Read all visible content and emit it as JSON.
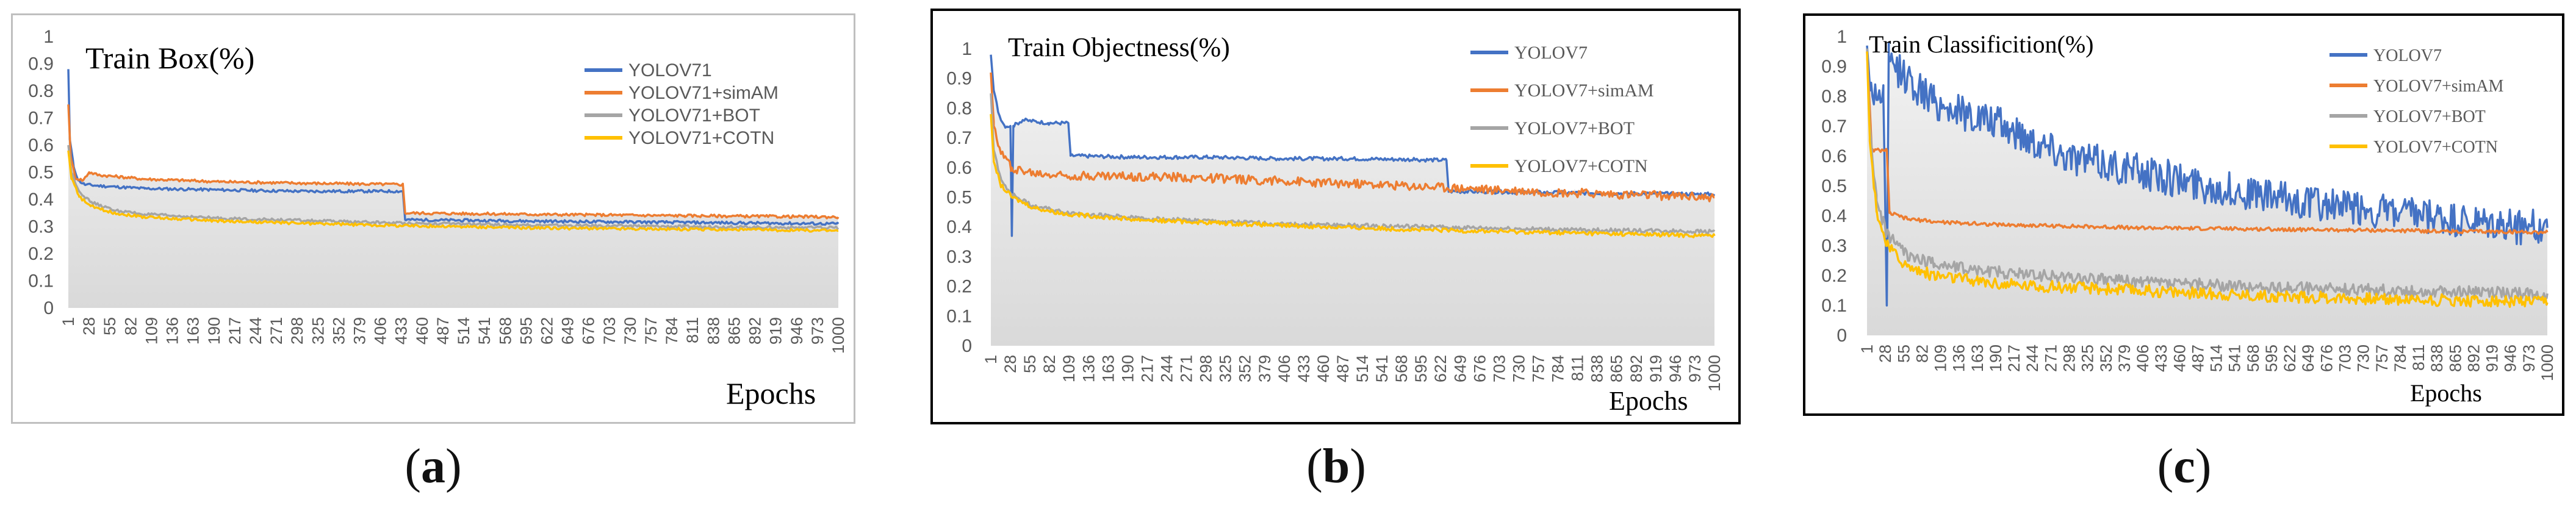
{
  "chart_data": [
    {
      "type": "line",
      "title": "Train Box(%)",
      "xlabel": "Epochs",
      "ylabel": "",
      "ylim": [
        0,
        1
      ],
      "yticks": [
        "0",
        "0.1",
        "0.2",
        "0.3",
        "0.4",
        "0.5",
        "0.6",
        "0.7",
        "0.8",
        "0.9",
        "1"
      ],
      "xticks": [
        "1",
        "28",
        "55",
        "82",
        "109",
        "136",
        "163",
        "190",
        "217",
        "244",
        "271",
        "298",
        "325",
        "352",
        "379",
        "406",
        "433",
        "460",
        "487",
        "514",
        "541",
        "568",
        "595",
        "622",
        "649",
        "676",
        "703",
        "730",
        "757",
        "784",
        "811",
        "838",
        "865",
        "892",
        "919",
        "946",
        "973",
        "1000"
      ],
      "caption_letter": "a",
      "legend_position": "top-right",
      "series": [
        {
          "name": "YOLOV71",
          "color": "#4472c4",
          "shape": [
            [
              1,
              0.88
            ],
            [
              3,
              0.62
            ],
            [
              8,
              0.52
            ],
            [
              14,
              0.47
            ],
            [
              22,
              0.455
            ],
            [
              40,
              0.45
            ],
            [
              100,
              0.44
            ],
            [
              200,
              0.435
            ],
            [
              300,
              0.43
            ],
            [
              400,
              0.43
            ],
            [
              435,
              0.43
            ],
            [
              438,
              0.325
            ],
            [
              600,
              0.32
            ],
            [
              800,
              0.315
            ],
            [
              1000,
              0.31
            ]
          ],
          "noise": 0.005
        },
        {
          "name": "YOLOV71+simAM",
          "color": "#ed7d31",
          "shape": [
            [
              1,
              0.75
            ],
            [
              4,
              0.56
            ],
            [
              10,
              0.48
            ],
            [
              20,
              0.47
            ],
            [
              28,
              0.5
            ],
            [
              40,
              0.49
            ],
            [
              100,
              0.475
            ],
            [
              200,
              0.465
            ],
            [
              300,
              0.46
            ],
            [
              435,
              0.455
            ],
            [
              438,
              0.35
            ],
            [
              600,
              0.345
            ],
            [
              800,
              0.34
            ],
            [
              1000,
              0.335
            ]
          ],
          "noise": 0.005
        },
        {
          "name": "YOLOV71+BOT",
          "color": "#a5a5a5",
          "shape": [
            [
              1,
              0.6
            ],
            [
              5,
              0.5
            ],
            [
              15,
              0.43
            ],
            [
              30,
              0.39
            ],
            [
              60,
              0.36
            ],
            [
              100,
              0.345
            ],
            [
              200,
              0.33
            ],
            [
              400,
              0.315
            ],
            [
              600,
              0.305
            ],
            [
              800,
              0.3
            ],
            [
              1000,
              0.295
            ]
          ],
          "noise": 0.005
        },
        {
          "name": "YOLOV71+COTN",
          "color": "#ffc000",
          "shape": [
            [
              1,
              0.58
            ],
            [
              5,
              0.48
            ],
            [
              15,
              0.41
            ],
            [
              30,
              0.375
            ],
            [
              60,
              0.35
            ],
            [
              100,
              0.335
            ],
            [
              200,
              0.32
            ],
            [
              400,
              0.305
            ],
            [
              600,
              0.295
            ],
            [
              800,
              0.29
            ],
            [
              1000,
              0.285
            ]
          ],
          "noise": 0.005
        }
      ]
    },
    {
      "type": "line",
      "title": "Train Objectness(%)",
      "xlabel": "Epochs",
      "ylabel": "",
      "ylim": [
        0,
        1
      ],
      "yticks": [
        "0",
        "0.1",
        "0.2",
        "0.3",
        "0.4",
        "0.5",
        "0.6",
        "0.7",
        "0.8",
        "0.9",
        "1"
      ],
      "xticks": [
        "1",
        "28",
        "55",
        "82",
        "109",
        "136",
        "163",
        "190",
        "217",
        "244",
        "271",
        "298",
        "325",
        "352",
        "379",
        "406",
        "433",
        "460",
        "487",
        "514",
        "541",
        "568",
        "595",
        "622",
        "649",
        "676",
        "703",
        "730",
        "757",
        "784",
        "811",
        "838",
        "865",
        "892",
        "919",
        "946",
        "973",
        "1000"
      ],
      "caption_letter": "b",
      "legend_position": "top-right",
      "series": [
        {
          "name": "YOLOV7",
          "color": "#4472c4",
          "shape": [
            [
              1,
              0.98
            ],
            [
              5,
              0.86
            ],
            [
              12,
              0.78
            ],
            [
              20,
              0.74
            ],
            [
              28,
              0.74
            ],
            [
              30,
              0.37
            ],
            [
              32,
              0.74
            ],
            [
              45,
              0.76
            ],
            [
              80,
              0.75
            ],
            [
              108,
              0.75
            ],
            [
              111,
              0.64
            ],
            [
              200,
              0.635
            ],
            [
              300,
              0.635
            ],
            [
              400,
              0.63
            ],
            [
              500,
              0.63
            ],
            [
              630,
              0.625
            ],
            [
              633,
              0.52
            ],
            [
              800,
              0.515
            ],
            [
              1000,
              0.51
            ]
          ],
          "noise": 0.006
        },
        {
          "name": "YOLOV7+simAM",
          "color": "#ed7d31",
          "shape": [
            [
              1,
              0.92
            ],
            [
              5,
              0.74
            ],
            [
              15,
              0.65
            ],
            [
              30,
              0.6
            ],
            [
              60,
              0.58
            ],
            [
              100,
              0.575
            ],
            [
              200,
              0.57
            ],
            [
              300,
              0.565
            ],
            [
              400,
              0.555
            ],
            [
              500,
              0.545
            ],
            [
              600,
              0.535
            ],
            [
              700,
              0.525
            ],
            [
              800,
              0.515
            ],
            [
              1000,
              0.5
            ]
          ],
          "noise": 0.015
        },
        {
          "name": "YOLOV7+BOT",
          "color": "#a5a5a5",
          "shape": [
            [
              1,
              0.85
            ],
            [
              5,
              0.66
            ],
            [
              15,
              0.56
            ],
            [
              30,
              0.51
            ],
            [
              60,
              0.47
            ],
            [
              100,
              0.45
            ],
            [
              200,
              0.43
            ],
            [
              400,
              0.41
            ],
            [
              600,
              0.4
            ],
            [
              800,
              0.39
            ],
            [
              1000,
              0.385
            ]
          ],
          "noise": 0.007
        },
        {
          "name": "YOLOV7+COTN",
          "color": "#ffc000",
          "shape": [
            [
              1,
              0.78
            ],
            [
              5,
              0.62
            ],
            [
              15,
              0.54
            ],
            [
              30,
              0.5
            ],
            [
              60,
              0.465
            ],
            [
              100,
              0.445
            ],
            [
              200,
              0.425
            ],
            [
              400,
              0.405
            ],
            [
              600,
              0.39
            ],
            [
              800,
              0.38
            ],
            [
              1000,
              0.37
            ]
          ],
          "noise": 0.007
        }
      ]
    },
    {
      "type": "line",
      "title": "Train Classificition(%)",
      "xlabel": "Epochs",
      "ylabel": "",
      "ylim": [
        0,
        1
      ],
      "yticks": [
        "0",
        "0.1",
        "0.2",
        "0.3",
        "0.4",
        "0.5",
        "0.6",
        "0.7",
        "0.8",
        "0.9",
        "1"
      ],
      "xticks": [
        "1",
        "28",
        "55",
        "82",
        "109",
        "136",
        "163",
        "190",
        "217",
        "244",
        "271",
        "298",
        "325",
        "352",
        "379",
        "406",
        "433",
        "460",
        "487",
        "514",
        "541",
        "568",
        "595",
        "622",
        "649",
        "676",
        "703",
        "730",
        "757",
        "784",
        "811",
        "838",
        "865",
        "892",
        "919",
        "946",
        "973",
        "1000"
      ],
      "caption_letter": "c",
      "legend_position": "top-right",
      "series": [
        {
          "name": "YOLOV7",
          "color": "#4472c4",
          "shape": [
            [
              1,
              0.97
            ],
            [
              6,
              0.82
            ],
            [
              25,
              0.8
            ],
            [
              30,
              0.1
            ],
            [
              33,
              0.92
            ],
            [
              60,
              0.86
            ],
            [
              100,
              0.78
            ],
            [
              200,
              0.7
            ],
            [
              300,
              0.6
            ],
            [
              400,
              0.55
            ],
            [
              500,
              0.5
            ],
            [
              600,
              0.46
            ],
            [
              700,
              0.43
            ],
            [
              800,
              0.4
            ],
            [
              900,
              0.37
            ],
            [
              1000,
              0.36
            ]
          ],
          "noise": 0.06
        },
        {
          "name": "YOLOV7+simAM",
          "color": "#ed7d31",
          "shape": [
            [
              1,
              0.95
            ],
            [
              8,
              0.62
            ],
            [
              30,
              0.62
            ],
            [
              34,
              0.41
            ],
            [
              60,
              0.39
            ],
            [
              100,
              0.38
            ],
            [
              200,
              0.37
            ],
            [
              400,
              0.36
            ],
            [
              600,
              0.355
            ],
            [
              800,
              0.35
            ],
            [
              1000,
              0.345
            ]
          ],
          "noise": 0.006
        },
        {
          "name": "YOLOV7+BOT",
          "color": "#a5a5a5",
          "shape": [
            [
              1,
              0.96
            ],
            [
              5,
              0.7
            ],
            [
              15,
              0.45
            ],
            [
              30,
              0.34
            ],
            [
              60,
              0.27
            ],
            [
              100,
              0.24
            ],
            [
              200,
              0.21
            ],
            [
              400,
              0.18
            ],
            [
              600,
              0.16
            ],
            [
              800,
              0.15
            ],
            [
              1000,
              0.14
            ]
          ],
          "noise": 0.02
        },
        {
          "name": "YOLOV7+COTN",
          "color": "#ffc000",
          "shape": [
            [
              1,
              0.95
            ],
            [
              5,
              0.65
            ],
            [
              15,
              0.42
            ],
            [
              30,
              0.3
            ],
            [
              60,
              0.23
            ],
            [
              100,
              0.2
            ],
            [
              200,
              0.17
            ],
            [
              400,
              0.15
            ],
            [
              600,
              0.13
            ],
            [
              800,
              0.12
            ],
            [
              1000,
              0.11
            ]
          ],
          "noise": 0.02
        }
      ]
    }
  ]
}
